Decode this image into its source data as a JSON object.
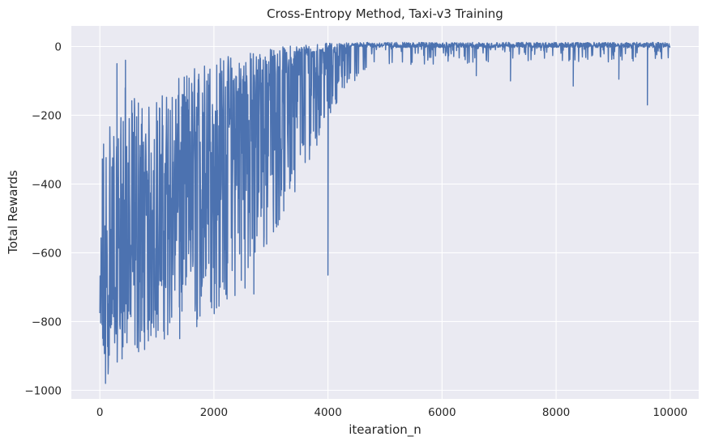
{
  "chart_data": {
    "type": "line",
    "title": "Cross-Entropy Method, Taxi-v3 Training",
    "xlabel": "itearation_n",
    "ylabel": "Total Rewards",
    "xlim": [
      -500,
      10500
    ],
    "ylim": [
      -1025,
      60
    ],
    "x_ticks": [
      0,
      2000,
      4000,
      6000,
      8000,
      10000
    ],
    "x_tick_labels": [
      "0",
      "2000",
      "4000",
      "6000",
      "8000",
      "10000"
    ],
    "y_ticks": [
      0,
      -200,
      -400,
      -600,
      -800,
      -1000
    ],
    "y_tick_labels": [
      "0",
      "−200",
      "−400",
      "−600",
      "−800",
      "−1000"
    ],
    "grid": true,
    "background": "#eaeaf2",
    "grid_color": "#ffffff",
    "series": [
      {
        "color": "#4c72b0",
        "envelope": {
          "x": [
            0,
            50,
            100,
            200,
            300,
            400,
            500,
            600,
            700,
            800,
            900,
            1000,
            1200,
            1400,
            1600,
            1800,
            2000,
            2200,
            2400,
            2600,
            2800,
            3000,
            3200,
            3400,
            3600,
            3800,
            4000,
            4200,
            4400,
            4600,
            4800,
            5000,
            5500,
            6000,
            6500,
            7000,
            7500,
            8000,
            8500,
            9000,
            9500,
            10000
          ],
          "upper": [
            -720,
            -190,
            -260,
            -110,
            -300,
            -40,
            -190,
            -130,
            -120,
            -200,
            -150,
            -140,
            -120,
            -90,
            -60,
            -40,
            -30,
            -20,
            -20,
            -15,
            -10,
            -5,
            0,
            5,
            8,
            10,
            10,
            10,
            12,
            12,
            12,
            12,
            12,
            12,
            12,
            12,
            12,
            12,
            12,
            12,
            12,
            12
          ],
          "lower": [
            -870,
            -910,
            -980,
            -930,
            -920,
            -910,
            -900,
            -910,
            -900,
            -880,
            -870,
            -860,
            -850,
            -820,
            -810,
            -800,
            -790,
            -760,
            -740,
            -690,
            -640,
            -570,
            -500,
            -430,
            -360,
            -290,
            -210,
            -150,
            -90,
            -60,
            -45,
            -35,
            -30,
            -25,
            -25,
            -20,
            -20,
            -20,
            -20,
            -20,
            -20,
            -15
          ],
          "mean": [
            -800,
            -780,
            -760,
            -700,
            -650,
            -620,
            -600,
            -580,
            -560,
            -540,
            -520,
            -500,
            -460,
            -420,
            -380,
            -340,
            -300,
            -260,
            -220,
            -180,
            -140,
            -110,
            -80,
            -60,
            -40,
            -25,
            -15,
            -8,
            -2,
            2,
            4,
            5,
            6,
            7,
            7,
            7,
            7,
            7,
            7,
            7,
            7,
            7
          ]
        },
        "notable_points": [
          {
            "x": 4000,
            "y": -665
          },
          {
            "x": 9600,
            "y": -170
          },
          {
            "x": 8300,
            "y": -115
          },
          {
            "x": 7200,
            "y": -100
          },
          {
            "x": 9100,
            "y": -95
          },
          {
            "x": 6600,
            "y": -85
          },
          {
            "x": 2700,
            "y": -720
          },
          {
            "x": 1700,
            "y": -815
          },
          {
            "x": 1400,
            "y": -850
          },
          {
            "x": 100,
            "y": -980
          },
          {
            "x": 300,
            "y": -50
          },
          {
            "x": 450,
            "y": -40
          }
        ]
      }
    ]
  }
}
